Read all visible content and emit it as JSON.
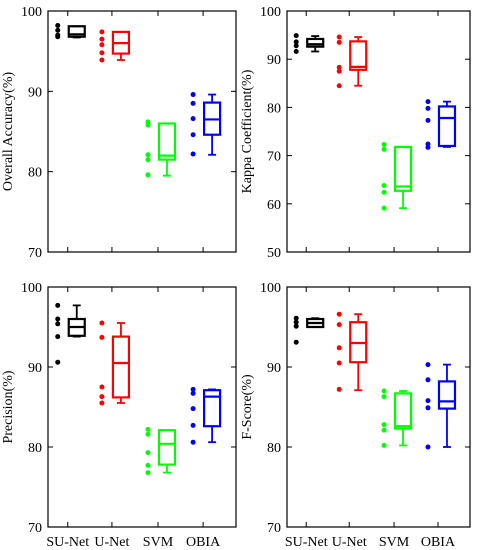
{
  "chart_data": [
    {
      "type": "box",
      "ylabel": "Overall Accuracy(%)",
      "ylim": [
        70,
        100
      ],
      "yticks": [
        70,
        80,
        90,
        100
      ],
      "categories": [
        "SU-Net",
        "U-Net",
        "SVM",
        "OBIA"
      ],
      "tick_labels_shown": false,
      "colors": [
        "#000000",
        "#ff0000",
        "#00ff00",
        "#0000ff"
      ],
      "boxes": [
        {
          "category": "SU-Net",
          "whislo": 96.7,
          "q1": 96.8,
          "med": 97.1,
          "q3": 98.1,
          "whishi": 98.1,
          "points": [
            98.2,
            97.6,
            97.0,
            96.8
          ]
        },
        {
          "category": "U-Net",
          "whislo": 93.9,
          "q1": 94.7,
          "med": 96.0,
          "q3": 97.4,
          "whishi": 97.4,
          "points": [
            97.4,
            96.5,
            95.8,
            94.8,
            93.9
          ]
        },
        {
          "category": "SVM",
          "whislo": 79.5,
          "q1": 81.5,
          "med": 82.0,
          "q3": 86.0,
          "whishi": 86.0,
          "points": [
            86.2,
            85.8,
            82.1,
            81.5,
            79.6
          ]
        },
        {
          "category": "OBIA",
          "whislo": 82.1,
          "q1": 84.6,
          "med": 86.5,
          "q3": 88.6,
          "whishi": 89.6,
          "points": [
            89.6,
            88.5,
            86.6,
            84.6,
            82.2
          ]
        }
      ]
    },
    {
      "type": "box",
      "ylabel": "Kappa Coefficient(%)",
      "ylim": [
        50,
        100
      ],
      "yticks": [
        50,
        60,
        70,
        80,
        90,
        100
      ],
      "categories": [
        "SU-Net",
        "U-Net",
        "SVM",
        "OBIA"
      ],
      "tick_labels_shown": false,
      "colors": [
        "#000000",
        "#ff0000",
        "#00ff00",
        "#0000ff"
      ],
      "boxes": [
        {
          "category": "SU-Net",
          "whislo": 91.6,
          "q1": 92.6,
          "med": 93.1,
          "q3": 94.2,
          "whishi": 94.8,
          "points": [
            94.9,
            93.6,
            92.8,
            91.6
          ]
        },
        {
          "category": "U-Net",
          "whislo": 84.5,
          "q1": 87.8,
          "med": 88.4,
          "q3": 93.7,
          "whishi": 94.6,
          "points": [
            94.6,
            93.5,
            88.3,
            87.5,
            84.5
          ]
        },
        {
          "category": "SVM",
          "whislo": 59.1,
          "q1": 62.7,
          "med": 63.6,
          "q3": 71.8,
          "whishi": 71.8,
          "points": [
            72.3,
            71.3,
            63.8,
            62.4,
            59.1
          ]
        },
        {
          "category": "OBIA",
          "whislo": 71.8,
          "q1": 72.0,
          "med": 77.8,
          "q3": 80.2,
          "whishi": 81.2,
          "points": [
            81.2,
            79.8,
            77.3,
            72.4,
            71.7
          ]
        }
      ]
    },
    {
      "type": "box",
      "ylabel": "Precision(%)",
      "ylim": [
        70,
        100
      ],
      "yticks": [
        70,
        80,
        90,
        100
      ],
      "categories": [
        "SU-Net",
        "U-Net",
        "SVM",
        "OBIA"
      ],
      "tick_labels_shown": true,
      "colors": [
        "#000000",
        "#ff0000",
        "#00ff00",
        "#0000ff"
      ],
      "boxes": [
        {
          "category": "SU-Net",
          "whislo": 93.8,
          "q1": 93.9,
          "med": 95.0,
          "q3": 96.0,
          "whishi": 97.7,
          "points": [
            97.7,
            96.0,
            95.4,
            93.8,
            90.6
          ]
        },
        {
          "category": "U-Net",
          "whislo": 85.5,
          "q1": 86.2,
          "med": 90.5,
          "q3": 93.8,
          "whishi": 95.5,
          "points": [
            95.5,
            93.7,
            87.5,
            86.3,
            85.5
          ]
        },
        {
          "category": "SVM",
          "whislo": 76.8,
          "q1": 77.8,
          "med": 80.4,
          "q3": 82.1,
          "whishi": 82.1,
          "points": [
            82.2,
            81.6,
            79.3,
            77.7,
            76.8
          ]
        },
        {
          "category": "OBIA",
          "whislo": 80.6,
          "q1": 82.6,
          "med": 86.3,
          "q3": 87.1,
          "whishi": 87.2,
          "points": [
            87.2,
            86.7,
            84.8,
            82.7,
            80.6
          ]
        }
      ]
    },
    {
      "type": "box",
      "ylabel": "F-Score(%)",
      "ylim": [
        70,
        100
      ],
      "yticks": [
        70,
        80,
        90,
        100
      ],
      "categories": [
        "SU-Net",
        "U-Net",
        "SVM",
        "OBIA"
      ],
      "tick_labels_shown": true,
      "colors": [
        "#000000",
        "#ff0000",
        "#00ff00",
        "#0000ff"
      ],
      "boxes": [
        {
          "category": "SU-Net",
          "whislo": 95.0,
          "q1": 95.0,
          "med": 95.5,
          "q3": 96.0,
          "whishi": 96.1,
          "points": [
            96.1,
            95.6,
            95.1,
            93.1
          ]
        },
        {
          "category": "U-Net",
          "whislo": 87.1,
          "q1": 90.6,
          "med": 93.0,
          "q3": 95.6,
          "whishi": 96.6,
          "points": [
            96.6,
            95.3,
            92.4,
            90.5,
            87.2
          ]
        },
        {
          "category": "SVM",
          "whislo": 80.2,
          "q1": 82.3,
          "med": 82.6,
          "q3": 86.7,
          "whishi": 87.0,
          "points": [
            87.0,
            86.3,
            82.8,
            82.1,
            80.2
          ]
        },
        {
          "category": "OBIA",
          "whislo": 80.0,
          "q1": 84.8,
          "med": 85.7,
          "q3": 88.2,
          "whishi": 90.3,
          "points": [
            90.3,
            88.4,
            85.8,
            84.9,
            80.0
          ]
        }
      ]
    }
  ]
}
